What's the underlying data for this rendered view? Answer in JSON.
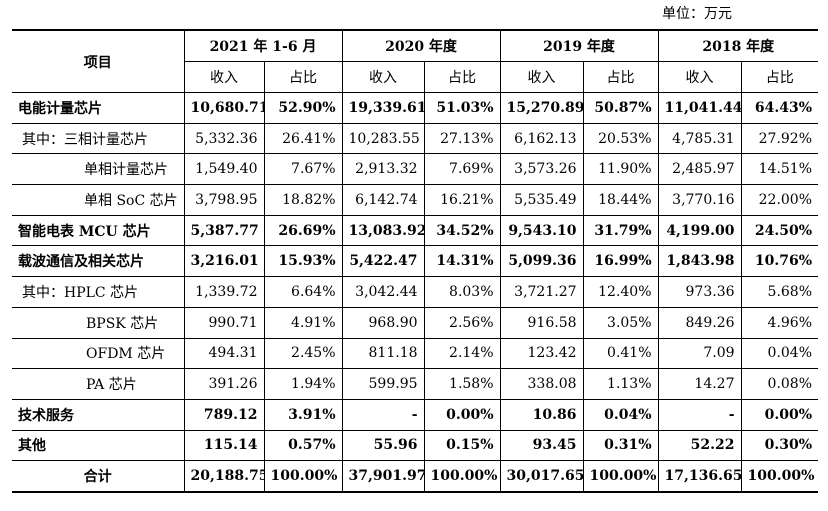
{
  "unit_label": "单位：万元",
  "header": {
    "item": "项目",
    "periods": [
      "2021 年 1-6 月",
      "2020 年度",
      "2019 年度",
      "2018 年度"
    ],
    "revenue": "收入",
    "share": "占比"
  },
  "rows": [
    {
      "label": "电能计量芯片",
      "style": "bold",
      "indent": "",
      "values": [
        "10,680.71",
        "52.90%",
        "19,339.61",
        "51.03%",
        "15,270.89",
        "50.87%",
        "11,041.44",
        "64.43%"
      ]
    },
    {
      "label": "其中：三相计量芯片",
      "style": "",
      "indent": "i1",
      "values": [
        "5,332.36",
        "26.41%",
        "10,283.55",
        "27.13%",
        "6,162.13",
        "20.53%",
        "4,785.31",
        "27.92%"
      ]
    },
    {
      "label": "单相计量芯片",
      "style": "",
      "indent": "i2",
      "values": [
        "1,549.40",
        "7.67%",
        "2,913.32",
        "7.69%",
        "3,573.26",
        "11.90%",
        "2,485.97",
        "14.51%"
      ]
    },
    {
      "label": "单相 SoC 芯片",
      "style": "",
      "indent": "i2",
      "values": [
        "3,798.95",
        "18.82%",
        "6,142.74",
        "16.21%",
        "5,535.49",
        "18.44%",
        "3,770.16",
        "22.00%"
      ]
    },
    {
      "label": "智能电表 MCU 芯片",
      "style": "bold",
      "indent": "",
      "values": [
        "5,387.77",
        "26.69%",
        "13,083.92",
        "34.52%",
        "9,543.10",
        "31.79%",
        "4,199.00",
        "24.50%"
      ]
    },
    {
      "label": "载波通信及相关芯片",
      "style": "bold",
      "indent": "",
      "values": [
        "3,216.01",
        "15.93%",
        "5,422.47",
        "14.31%",
        "5,099.36",
        "16.99%",
        "1,843.98",
        "10.76%"
      ]
    },
    {
      "label": "其中：HPLC 芯片",
      "style": "",
      "indent": "i1",
      "values": [
        "1,339.72",
        "6.64%",
        "3,042.44",
        "8.03%",
        "3,721.27",
        "12.40%",
        "973.36",
        "5.68%"
      ]
    },
    {
      "label": "BPSK 芯片",
      "style": "",
      "indent": "i3",
      "values": [
        "990.71",
        "4.91%",
        "968.90",
        "2.56%",
        "916.58",
        "3.05%",
        "849.26",
        "4.96%"
      ]
    },
    {
      "label": "OFDM 芯片",
      "style": "",
      "indent": "i3",
      "values": [
        "494.31",
        "2.45%",
        "811.18",
        "2.14%",
        "123.42",
        "0.41%",
        "7.09",
        "0.04%"
      ]
    },
    {
      "label": "PA 芯片",
      "style": "",
      "indent": "i3",
      "values": [
        "391.26",
        "1.94%",
        "599.95",
        "1.58%",
        "338.08",
        "1.13%",
        "14.27",
        "0.08%"
      ]
    },
    {
      "label": "技术服务",
      "style": "bold",
      "indent": "",
      "values": [
        "789.12",
        "3.91%",
        "-",
        "0.00%",
        "10.86",
        "0.04%",
        "-",
        "0.00%"
      ]
    },
    {
      "label": "其他",
      "style": "bold",
      "indent": "",
      "values": [
        "115.14",
        "0.57%",
        "55.96",
        "0.15%",
        "93.45",
        "0.31%",
        "52.22",
        "0.30%"
      ]
    },
    {
      "label": "合计",
      "style": "bold total",
      "indent": "",
      "values": [
        "20,188.75",
        "100.00%",
        "37,901.97",
        "100.00%",
        "30,017.65",
        "100.00%",
        "17,136.65",
        "100.00%"
      ]
    }
  ]
}
